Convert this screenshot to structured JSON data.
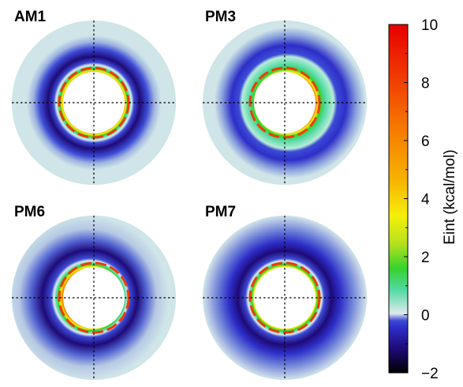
{
  "chart_data": {
    "type": "heatmap",
    "description_kind": "polar interaction-energy maps",
    "panels": [
      {
        "title": "AM1",
        "inner_wall_region": "orange/yellow ring",
        "attractive_well": "deep purple ring, roughly symmetric"
      },
      {
        "title": "PM3",
        "inner_wall_region": "orange/yellow ring with broad green shell",
        "attractive_well": "purple crescent, strongest on the right side"
      },
      {
        "title": "PM6",
        "inner_wall_region": "orange/yellow ring",
        "attractive_well": "purple crescent, strongest on the left side"
      },
      {
        "title": "PM7",
        "inner_wall_region": "orange/yellow ring",
        "attractive_well": "wide purple-blue ring, roughly symmetric"
      }
    ],
    "colorbar": {
      "label": "Eint (kcal/mol)",
      "range": [
        -2,
        10
      ],
      "ticks": [
        {
          "value": 10,
          "label": "10"
        },
        {
          "value": 8,
          "label": "8"
        },
        {
          "value": 6,
          "label": "6"
        },
        {
          "value": 4,
          "label": "4"
        },
        {
          "value": 2,
          "label": "2"
        },
        {
          "value": 0,
          "label": "0"
        },
        {
          "value": -2,
          "label": "−2"
        }
      ],
      "minor_ticks": [
        9,
        7,
        5,
        3,
        1,
        -1
      ],
      "colors": [
        "#000000",
        "#1e0a78",
        "#2d2ec8",
        "#3d4bd6",
        "#dfe9ee",
        "#4fd9a0",
        "#36d22c",
        "#b6e01e",
        "#f5f00a",
        "#f7b400",
        "#f57a00",
        "#f03a00",
        "#e60000"
      ],
      "color_stops": [
        0.0,
        0.07,
        0.13,
        0.15,
        0.17,
        0.24,
        0.3,
        0.37,
        0.45,
        0.55,
        0.7,
        0.85,
        1.0
      ]
    },
    "crosshair": "dotted black",
    "background_color": "#cfe5e8"
  }
}
